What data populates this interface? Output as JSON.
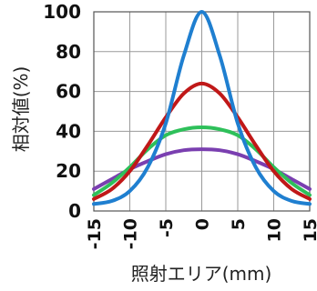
{
  "chart_data": {
    "type": "line",
    "title": "",
    "xlabel": "照射エリア(mm)",
    "ylabel": "相対値(%)",
    "xlim": [
      -15,
      15
    ],
    "ylim": [
      0,
      100
    ],
    "x_ticks": [
      -15,
      -10,
      -5,
      0,
      5,
      10,
      15
    ],
    "x_tick_labels": [
      "-15",
      "-10",
      "-5",
      "0",
      "5",
      "10",
      "15"
    ],
    "y_ticks": [
      0,
      20,
      40,
      60,
      80,
      100
    ],
    "y_tick_labels": [
      "0",
      "20",
      "40",
      "60",
      "80",
      "100"
    ],
    "grid": true,
    "legend": "none",
    "x": [
      -15,
      -12.5,
      -10,
      -7.5,
      -5,
      -2.5,
      0,
      2.5,
      5,
      7.5,
      10,
      12.5,
      15
    ],
    "series": [
      {
        "color": "#1f7fd0",
        "values": [
          3.5,
          5,
          10,
          22,
          44,
          78,
          100,
          78,
          44,
          22,
          10,
          5,
          3.5
        ]
      },
      {
        "color": "#c01818",
        "values": [
          6,
          11,
          20,
          33,
          47,
          59,
          64,
          59,
          47,
          33,
          20,
          11,
          6
        ]
      },
      {
        "color": "#2ec05a",
        "values": [
          8,
          14,
          22,
          31,
          38,
          41,
          42,
          41,
          38,
          31,
          22,
          14,
          8
        ]
      },
      {
        "color": "#7a3fb0",
        "values": [
          11,
          16,
          21,
          25,
          28.5,
          30.5,
          31,
          30.5,
          28.5,
          25,
          21,
          16,
          11
        ]
      }
    ]
  }
}
